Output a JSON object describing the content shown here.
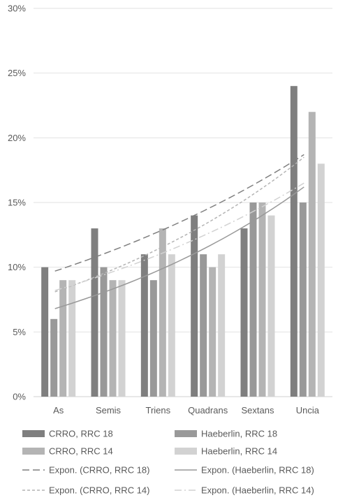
{
  "chart_data": {
    "type": "bar",
    "categories": [
      "As",
      "Semis",
      "Triens",
      "Quadrans",
      "Sextans",
      "Uncia"
    ],
    "series": [
      {
        "name": "CRRO, RRC 18",
        "values": [
          10,
          13,
          11,
          14,
          13,
          24
        ],
        "color": "#7f7f7f"
      },
      {
        "name": "Haeberlin, RRC 18",
        "values": [
          6,
          10,
          9,
          11,
          15,
          15
        ],
        "color": "#999999"
      },
      {
        "name": "CRRO, RRC 14",
        "values": [
          9,
          9,
          13,
          10,
          15,
          22
        ],
        "color": "#b4b4b4"
      },
      {
        "name": "Haeberlin, RRC 14",
        "values": [
          9,
          9,
          11,
          11,
          14,
          18
        ],
        "color": "#d2d2d2"
      }
    ],
    "trendlines": [
      {
        "name": "Expon. (CRRO, RRC 18)",
        "kind": "exponential",
        "start": 9.7,
        "end": 18.7,
        "color": "#7f7f7f",
        "dash": "long-dash"
      },
      {
        "name": "Expon. (Haeberlin, RRC 18)",
        "kind": "exponential",
        "start": 6.8,
        "end": 16.2,
        "color": "#999999",
        "dash": "solid"
      },
      {
        "name": "Expon. (CRRO, RRC 14)",
        "kind": "exponential",
        "start": 8.1,
        "end": 18.5,
        "color": "#b4b4b4",
        "dash": "short-dash"
      },
      {
        "name": "Expon. (Haeberlin, RRC 14)",
        "kind": "exponential",
        "start": 8.2,
        "end": 16.5,
        "color": "#d2d2d2",
        "dash": "dash-dot"
      }
    ],
    "yticks": [
      "0%",
      "5%",
      "10%",
      "15%",
      "20%",
      "25%",
      "30%"
    ],
    "ylim": [
      0,
      30
    ],
    "grid": true,
    "legend_position": "bottom",
    "title": "",
    "xlabel": "",
    "ylabel": ""
  }
}
